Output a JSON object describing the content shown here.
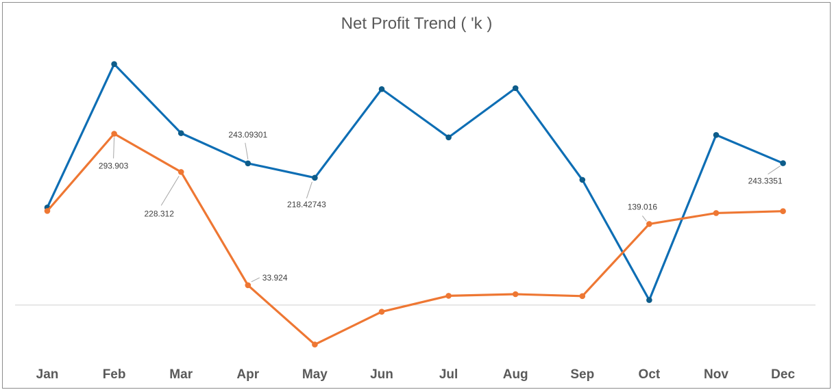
{
  "chart_data": {
    "type": "line",
    "title": "Net Profit Trend ( 'k )",
    "categories": [
      "Jan",
      "Feb",
      "Mar",
      "Apr",
      "May",
      "Jun",
      "Jul",
      "Aug",
      "Sep",
      "Oct",
      "Nov",
      "Dec"
    ],
    "ylim": [
      -80,
      460
    ],
    "grid": false,
    "legend": "none",
    "series": [
      {
        "color": "#0e6eb4",
        "values": [
          167.3,
          413.4,
          294.9,
          243.09301,
          218.42743,
          370.5,
          287.7,
          372.1,
          214.8,
          8.5,
          291.8,
          243.3351
        ],
        "data_labels": [
          {
            "index": 3,
            "text": "243.09301"
          },
          {
            "index": 4,
            "text": "218.42743"
          },
          {
            "index": 11,
            "text": "243.3351"
          }
        ]
      },
      {
        "color": "#ee7733",
        "values": [
          161.4,
          293.903,
          228.312,
          33.924,
          -67.8,
          -11.5,
          15.8,
          18.6,
          15.3,
          139.016,
          157.8,
          161.0
        ],
        "data_labels": [
          {
            "index": 1,
            "text": "293.903"
          },
          {
            "index": 2,
            "text": "228.312"
          },
          {
            "index": 3,
            "text": "33.924"
          },
          {
            "index": 9,
            "text": "139.016"
          }
        ]
      }
    ]
  }
}
